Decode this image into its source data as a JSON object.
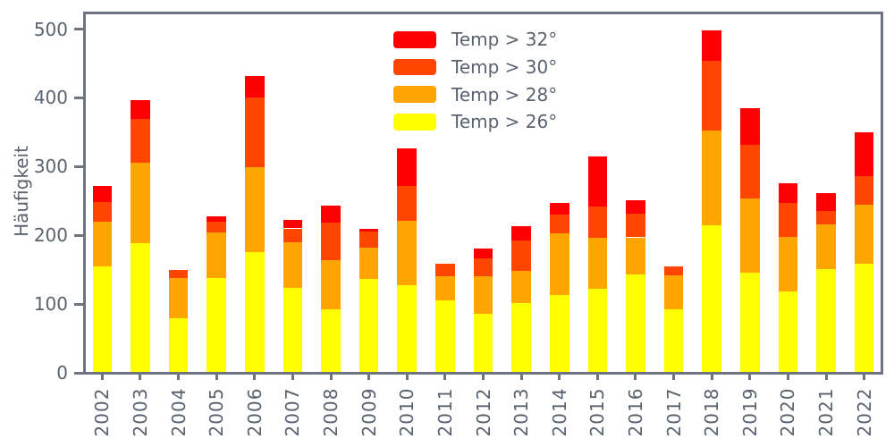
{
  "chart_data": {
    "type": "bar",
    "stacked": true,
    "title": "",
    "xlabel": "",
    "ylabel": "Häufigkeit",
    "grid": false,
    "background": "#ffffff",
    "axis_color": "#6E7480",
    "text_color": "#5A6270",
    "ylim": [
      0,
      527
    ],
    "yticks": [
      0,
      100,
      200,
      300,
      400,
      500
    ],
    "categories": [
      "2002",
      "2003",
      "2004",
      "2005",
      "2006",
      "2007",
      "2008",
      "2009",
      "2010",
      "2011",
      "2012",
      "2013",
      "2014",
      "2015",
      "2016",
      "2017",
      "2018",
      "2019",
      "2020",
      "2021",
      "2022"
    ],
    "series": [
      {
        "name": "Temp > 26°",
        "slug": "temp-gt-26",
        "color": "#FFFF00",
        "values": [
          155,
          189,
          79,
          138,
          175,
          123,
          92,
          136,
          128,
          105,
          86,
          101,
          113,
          122,
          143,
          92,
          214,
          145,
          118,
          151,
          158
        ]
      },
      {
        "name": "Temp > 28°",
        "slug": "temp-gt-28",
        "color": "#FFA500",
        "values": [
          65,
          116,
          59,
          66,
          124,
          67,
          72,
          46,
          93,
          35,
          54,
          47,
          90,
          74,
          54,
          50,
          139,
          108,
          80,
          65,
          86
        ]
      },
      {
        "name": "Temp > 30°",
        "slug": "temp-gt-30",
        "color": "#FF4500",
        "values": [
          28,
          64,
          12,
          16,
          101,
          20,
          55,
          24,
          51,
          19,
          26,
          44,
          27,
          46,
          35,
          13,
          101,
          78,
          49,
          19,
          42
        ]
      },
      {
        "name": "Temp > 32°",
        "slug": "temp-gt-32",
        "color": "#FF0000",
        "values": [
          24,
          28,
          0,
          7,
          32,
          13,
          24,
          3,
          54,
          0,
          15,
          21,
          17,
          73,
          19,
          0,
          44,
          54,
          29,
          27,
          64
        ]
      }
    ],
    "totals": [
      272,
      397,
      150,
      227,
      432,
      223,
      243,
      209,
      326,
      159,
      181,
      213,
      247,
      315,
      251,
      155,
      498,
      385,
      276,
      262,
      350
    ],
    "legend": {
      "position": "upper center-right, inside plot",
      "frame": false,
      "entries_top_to_bottom": [
        "Temp > 32°",
        "Temp > 30°",
        "Temp > 28°",
        "Temp > 26°"
      ]
    }
  }
}
